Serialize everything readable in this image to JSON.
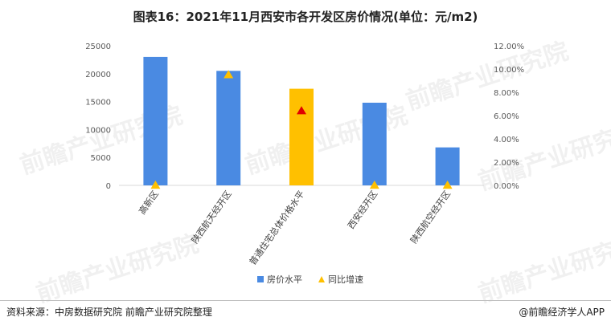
{
  "title": "图表16：2021年11月西安市各开发区房价情况(单位：元/m2)",
  "source": "资料来源：中房数据研究院 前瞻产业研究院整理",
  "brand": "@前瞻经济学人APP",
  "watermark": "前瞻产业研究院",
  "chart_data": {
    "type": "bar",
    "categories": [
      "高新区",
      "陕西航天经开区",
      "普通住宅总体价格水平",
      "西安经开区",
      "陕西航空经开区"
    ],
    "series": [
      {
        "name": "房价水平",
        "kind": "bar",
        "axis": "left",
        "values": [
          23000,
          20500,
          17300,
          14800,
          6800
        ]
      },
      {
        "name": "同比增速",
        "kind": "scatter",
        "axis": "right",
        "values": [
          0.0,
          9.5,
          6.4,
          0.0,
          0.0
        ]
      }
    ],
    "y_left": {
      "min": 0,
      "max": 25000,
      "ticks": [
        "0",
        "5000",
        "10000",
        "15000",
        "20000",
        "25000"
      ]
    },
    "y_right": {
      "min": 0,
      "max": 12,
      "ticks": [
        "0.00%",
        "2.00%",
        "4.00%",
        "6.00%",
        "8.00%",
        "10.00%",
        "12.00%"
      ]
    },
    "colors": {
      "bar": "#4a8ae2",
      "highlight_bar": "#ffc000",
      "marker": "#ffc000",
      "highlight_marker": "#e00000"
    },
    "highlight_index": 2,
    "legend_position": "bottom"
  }
}
